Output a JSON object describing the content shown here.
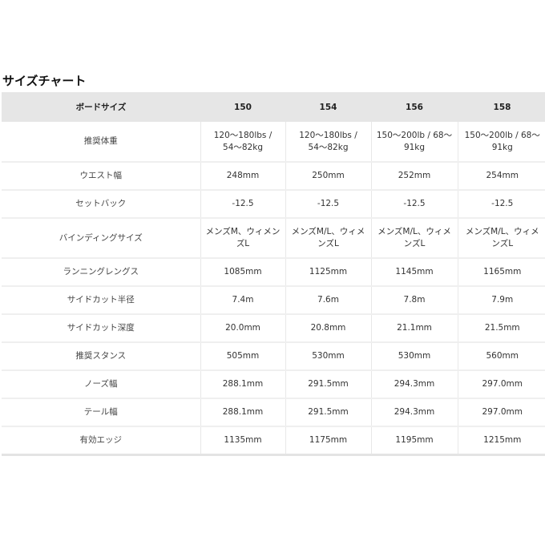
{
  "title": "サイズチャート",
  "header": [
    "ボードサイズ",
    "150",
    "154",
    "156",
    "158"
  ],
  "rows": [
    {
      "label": "推奨体重",
      "values": [
        "120〜180lbs / 54〜82kg",
        "120〜180lbs / 54〜82kg",
        "150〜200lb / 68〜91kg",
        "150〜200lb / 68〜91kg"
      ],
      "tall": true
    },
    {
      "label": "ウエスト幅",
      "values": [
        "248mm",
        "250mm",
        "252mm",
        "254mm"
      ]
    },
    {
      "label": "セットバック",
      "values": [
        "-12.5",
        "-12.5",
        "-12.5",
        "-12.5"
      ]
    },
    {
      "label": "バインディングサイズ",
      "values": [
        "メンズM、ウィメンズL",
        "メンズM/L、ウィメンズL",
        "メンズM/L、ウィメンズL",
        "メンズM/L、ウィメンズL"
      ],
      "tall": true
    },
    {
      "label": "ランニングレングス",
      "values": [
        "1085mm",
        "1125mm",
        "1145mm",
        "1165mm"
      ]
    },
    {
      "label": "サイドカット半径",
      "values": [
        "7.4m",
        "7.6m",
        "7.8m",
        "7.9m"
      ]
    },
    {
      "label": "サイドカット深度",
      "values": [
        "20.0mm",
        "20.8mm",
        "21.1mm",
        "21.5mm"
      ]
    },
    {
      "label": "推奨スタンス",
      "values": [
        "505mm",
        "530mm",
        "530mm",
        "560mm"
      ]
    },
    {
      "label": "ノーズ幅",
      "values": [
        "288.1mm",
        "291.5mm",
        "294.3mm",
        "297.0mm"
      ]
    },
    {
      "label": "テール幅",
      "values": [
        "288.1mm",
        "291.5mm",
        "294.3mm",
        "297.0mm"
      ]
    },
    {
      "label": "有効エッジ",
      "values": [
        "1135mm",
        "1175mm",
        "1195mm",
        "1215mm"
      ]
    }
  ]
}
